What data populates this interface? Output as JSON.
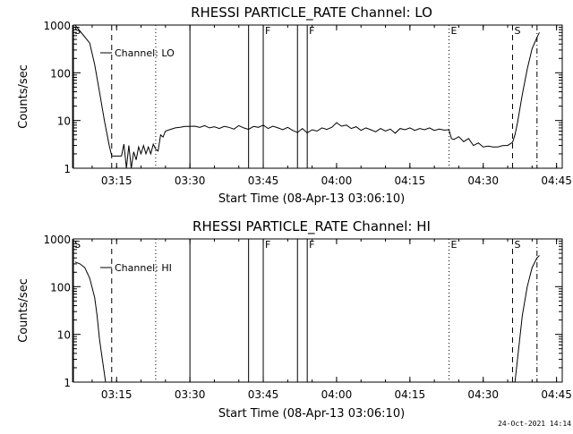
{
  "footer": {
    "timestamp": "24-Oct-2021 14:14"
  },
  "chart_data": [
    {
      "type": "line",
      "title": "RHESSI PARTICLE_RATE Channel: LO",
      "xlabel": "Start Time (08-Apr-13 03:06:10)",
      "ylabel": "Counts/sec",
      "yscale": "log",
      "ylim": [
        1,
        1000
      ],
      "xlim": [
        "03:06:10",
        "04:46:10"
      ],
      "x_ticks": [
        "03:15",
        "03:30",
        "03:45",
        "04:00",
        "04:15",
        "04:30",
        "04:45"
      ],
      "y_ticks": [
        "1",
        "10",
        "100",
        "1000"
      ],
      "grid": false,
      "legend": {
        "position": "top-left",
        "entries": [
          "Channel: LO"
        ]
      },
      "markers": [
        {
          "label": "S",
          "time": "03:06",
          "style": "solid"
        },
        {
          "label": "",
          "time": "03:14",
          "style": "dashed"
        },
        {
          "label": "",
          "time": "03:23",
          "style": "dotted"
        },
        {
          "label": "",
          "time": "03:30",
          "style": "solid"
        },
        {
          "label": "",
          "time": "03:42",
          "style": "solid"
        },
        {
          "label": "F",
          "time": "03:45",
          "style": "solid"
        },
        {
          "label": "",
          "time": "03:52",
          "style": "solid"
        },
        {
          "label": "F",
          "time": "03:54",
          "style": "solid"
        },
        {
          "label": "E",
          "time": "04:23",
          "style": "dotted"
        },
        {
          "label": "S",
          "time": "04:36",
          "style": "dashed"
        },
        {
          "label": "",
          "time": "04:41",
          "style": "dashdot"
        }
      ],
      "series": [
        {
          "name": "Channel: LO",
          "points": [
            [
              "03:06:30",
              1000
            ],
            [
              "03:08:00",
              650
            ],
            [
              "03:09:30",
              420
            ],
            [
              "03:10:30",
              150
            ],
            [
              "03:11:30",
              40
            ],
            [
              "03:12:30",
              10
            ],
            [
              "03:13:30",
              3
            ],
            [
              "03:14:00",
              1.8
            ],
            [
              "03:15:00",
              1.8
            ],
            [
              "03:16:00",
              1.8
            ],
            [
              "03:16:30",
              3.2
            ],
            [
              "03:17:00",
              1
            ],
            [
              "03:17:30",
              3
            ],
            [
              "03:18:00",
              1
            ],
            [
              "03:18:30",
              2.2
            ],
            [
              "03:19:00",
              1.5
            ],
            [
              "03:19:30",
              2.8
            ],
            [
              "03:20:00",
              2
            ],
            [
              "03:20:30",
              3
            ],
            [
              "03:21:00",
              2
            ],
            [
              "03:21:30",
              2.8
            ],
            [
              "03:22:00",
              2
            ],
            [
              "03:22:30",
              3.2
            ],
            [
              "03:23:00",
              2.5
            ],
            [
              "03:23:30",
              2.3
            ],
            [
              "03:24:00",
              5
            ],
            [
              "03:24:30",
              4.5
            ],
            [
              "03:25:00",
              6
            ],
            [
              "03:26:00",
              6.5
            ],
            [
              "03:27:00",
              7
            ],
            [
              "03:28:00",
              7.2
            ],
            [
              "03:29:00",
              7.5
            ],
            [
              "03:30:00",
              7.5
            ],
            [
              "03:31:00",
              7.6
            ],
            [
              "03:32:00",
              7.2
            ],
            [
              "03:33:00",
              7.8
            ],
            [
              "03:34:00",
              7.0
            ],
            [
              "03:35:00",
              7.4
            ],
            [
              "03:36:00",
              6.8
            ],
            [
              "03:37:00",
              7.5
            ],
            [
              "03:38:00",
              7.2
            ],
            [
              "03:39:00",
              6.6
            ],
            [
              "03:40:00",
              7.8
            ],
            [
              "03:41:00",
              7.0
            ],
            [
              "03:42:00",
              6.5
            ],
            [
              "03:43:00",
              7.5
            ],
            [
              "03:44:00",
              7.2
            ],
            [
              "03:45:00",
              8.0
            ],
            [
              "03:46:00",
              6.8
            ],
            [
              "03:47:00",
              7.6
            ],
            [
              "03:48:00",
              7.0
            ],
            [
              "03:49:00",
              6.4
            ],
            [
              "03:50:00",
              7.2
            ],
            [
              "03:51:00",
              6.2
            ],
            [
              "03:52:00",
              5.6
            ],
            [
              "03:53:00",
              6.8
            ],
            [
              "03:54:00",
              5.5
            ],
            [
              "03:55:00",
              6.4
            ],
            [
              "03:56:00",
              6.0
            ],
            [
              "03:57:00",
              7.0
            ],
            [
              "03:58:00",
              6.5
            ],
            [
              "03:59:00",
              7.2
            ],
            [
              "04:00:00",
              9.0
            ],
            [
              "04:01:00",
              7.6
            ],
            [
              "04:02:00",
              8.0
            ],
            [
              "04:03:00",
              6.8
            ],
            [
              "04:04:00",
              7.4
            ],
            [
              "04:05:00",
              6.2
            ],
            [
              "04:06:00",
              7.0
            ],
            [
              "04:07:00",
              6.4
            ],
            [
              "04:08:00",
              5.8
            ],
            [
              "04:09:00",
              6.8
            ],
            [
              "04:10:00",
              6.0
            ],
            [
              "04:11:00",
              6.6
            ],
            [
              "04:12:00",
              5.4
            ],
            [
              "04:13:00",
              6.8
            ],
            [
              "04:14:00",
              6.4
            ],
            [
              "04:15:00",
              7.0
            ],
            [
              "04:16:00",
              6.2
            ],
            [
              "04:17:00",
              6.8
            ],
            [
              "04:18:00",
              6.4
            ],
            [
              "04:19:00",
              7.0
            ],
            [
              "04:20:00",
              6.2
            ],
            [
              "04:21:00",
              6.6
            ],
            [
              "04:22:00",
              6.3
            ],
            [
              "04:23:00",
              6.4
            ],
            [
              "04:23:30",
              4.2
            ],
            [
              "04:24:00",
              4.0
            ],
            [
              "04:25:00",
              4.6
            ],
            [
              "04:26:00",
              3.6
            ],
            [
              "04:27:00",
              4.2
            ],
            [
              "04:28:00",
              3.0
            ],
            [
              "04:29:00",
              3.4
            ],
            [
              "04:30:00",
              2.8
            ],
            [
              "04:31:00",
              2.9
            ],
            [
              "04:32:00",
              2.8
            ],
            [
              "04:33:00",
              2.8
            ],
            [
              "04:34:00",
              3.0
            ],
            [
              "04:35:00",
              3.0
            ],
            [
              "04:36:00",
              3.5
            ],
            [
              "04:36:30",
              5.0
            ],
            [
              "04:37:00",
              9.0
            ],
            [
              "04:38:00",
              35
            ],
            [
              "04:39:00",
              120
            ],
            [
              "04:40:00",
              320
            ],
            [
              "04:41:00",
              550
            ],
            [
              "04:41:30",
              700
            ]
          ]
        }
      ]
    },
    {
      "type": "line",
      "title": "RHESSI PARTICLE_RATE Channel: HI",
      "xlabel": "Start Time (08-Apr-13 03:06:10)",
      "ylabel": "Counts/sec",
      "yscale": "log",
      "ylim": [
        1,
        1000
      ],
      "xlim": [
        "03:06:10",
        "04:46:10"
      ],
      "x_ticks": [
        "03:15",
        "03:30",
        "03:45",
        "04:00",
        "04:15",
        "04:30",
        "04:45"
      ],
      "y_ticks": [
        "1",
        "10",
        "100",
        "1000"
      ],
      "grid": false,
      "legend": {
        "position": "top-left",
        "entries": [
          "Channel: HI"
        ]
      },
      "markers": [
        {
          "label": "S",
          "time": "03:06",
          "style": "solid"
        },
        {
          "label": "",
          "time": "03:14",
          "style": "dashed"
        },
        {
          "label": "",
          "time": "03:23",
          "style": "dotted"
        },
        {
          "label": "",
          "time": "03:30",
          "style": "solid"
        },
        {
          "label": "",
          "time": "03:42",
          "style": "solid"
        },
        {
          "label": "F",
          "time": "03:45",
          "style": "solid"
        },
        {
          "label": "",
          "time": "03:52",
          "style": "solid"
        },
        {
          "label": "F",
          "time": "03:54",
          "style": "solid"
        },
        {
          "label": "E",
          "time": "04:23",
          "style": "dotted"
        },
        {
          "label": "S",
          "time": "04:36",
          "style": "dashed"
        },
        {
          "label": "",
          "time": "04:41",
          "style": "dashdot"
        }
      ],
      "series": [
        {
          "name": "Channel: HI",
          "points": [
            [
              "03:06:30",
              330
            ],
            [
              "03:07:30",
              300
            ],
            [
              "03:08:30",
              250
            ],
            [
              "03:09:30",
              150
            ],
            [
              "03:10:30",
              60
            ],
            [
              "03:11:00",
              25
            ],
            [
              "03:11:30",
              8
            ],
            [
              "03:12:00",
              3.5
            ],
            [
              "03:12:30",
              1.5
            ],
            [
              "03:12:45",
              1
            ],
            [
              "04:36:30",
              1
            ],
            [
              "04:37:00",
              3
            ],
            [
              "04:38:00",
              25
            ],
            [
              "04:39:00",
              100
            ],
            [
              "04:40:00",
              250
            ],
            [
              "04:41:00",
              400
            ],
            [
              "04:41:30",
              450
            ]
          ]
        }
      ]
    }
  ]
}
